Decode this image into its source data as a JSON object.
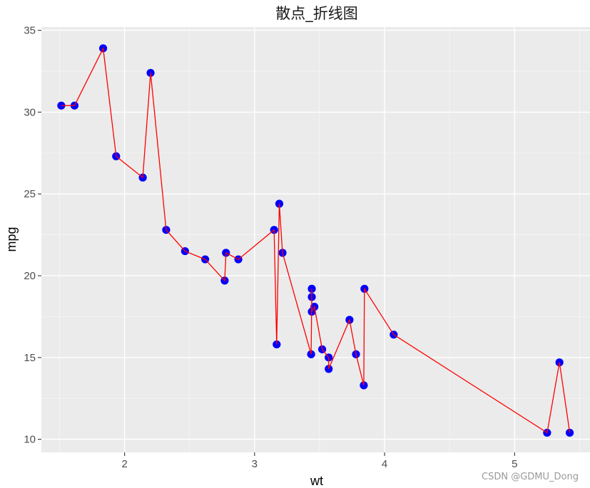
{
  "chart_data": {
    "type": "line",
    "title": "散点_折线图",
    "xlabel": "wt",
    "ylabel": "mpg",
    "xlim": [
      1.36,
      5.58
    ],
    "ylim": [
      9.2,
      35.2
    ],
    "x_ticks": [
      2,
      3,
      4,
      5
    ],
    "y_ticks": [
      10,
      15,
      20,
      25,
      30,
      35
    ],
    "x_tick_labels": [
      "2",
      "3",
      "4",
      "5"
    ],
    "y_tick_labels": [
      "10",
      "15",
      "20",
      "25",
      "30",
      "35"
    ],
    "grid": true,
    "background": "#ebebeb",
    "point_color": "#0000ff",
    "line_color": "#ff0000",
    "series": [
      {
        "type": "scatter+line",
        "x": [
          1.513,
          1.615,
          1.835,
          1.935,
          2.14,
          2.2,
          2.32,
          2.465,
          2.62,
          2.77,
          2.78,
          2.875,
          3.15,
          3.17,
          3.19,
          3.215,
          3.435,
          3.44,
          3.44,
          3.44,
          3.46,
          3.52,
          3.57,
          3.57,
          3.73,
          3.78,
          3.84,
          3.845,
          4.07,
          5.25,
          5.345,
          5.424
        ],
        "y": [
          30.4,
          30.4,
          33.9,
          27.3,
          26.0,
          32.4,
          22.8,
          21.5,
          21.0,
          19.7,
          21.4,
          21.0,
          22.8,
          15.8,
          24.4,
          21.4,
          15.2,
          18.7,
          19.2,
          17.8,
          18.1,
          15.5,
          15.0,
          14.3,
          17.3,
          15.2,
          13.3,
          19.2,
          16.4,
          10.4,
          14.7,
          10.4
        ]
      }
    ]
  },
  "watermark": "CSDN @GDMU_Dong"
}
